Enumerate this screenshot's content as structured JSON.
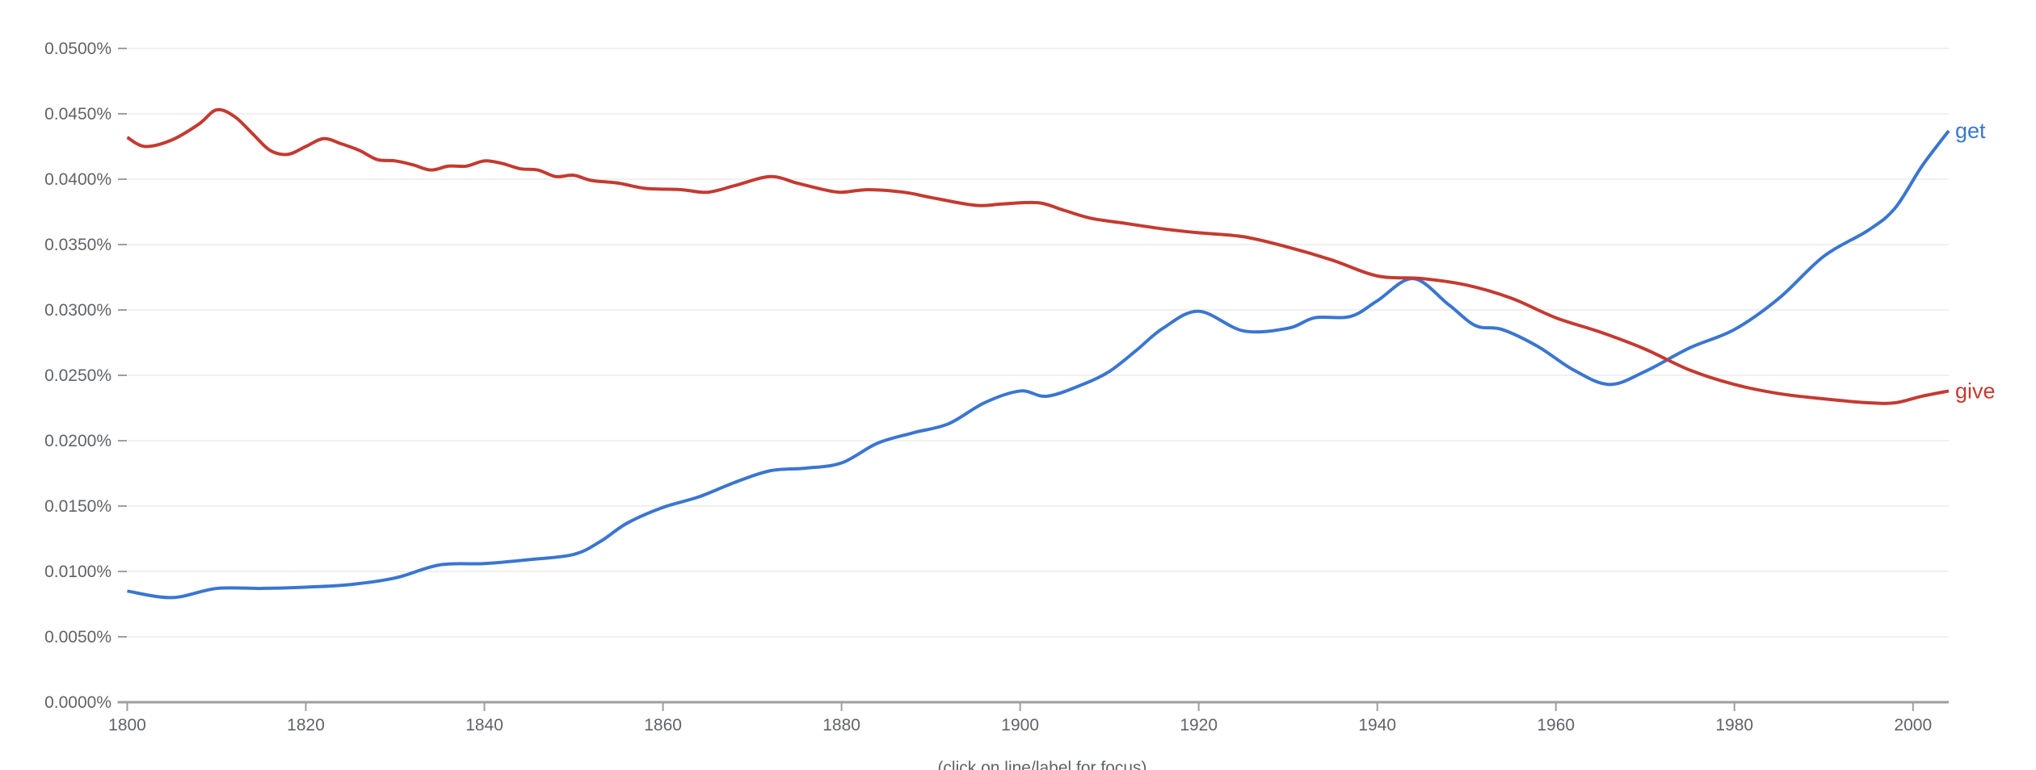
{
  "chart_data": {
    "type": "line",
    "title": "",
    "xlabel": "",
    "ylabel": "",
    "xlim": [
      1800,
      2004
    ],
    "ylim": [
      0,
      0.05
    ],
    "grid": true,
    "legend": "inline-right",
    "x_ticks": [
      "1800",
      "1820",
      "1840",
      "1860",
      "1880",
      "1900",
      "1920",
      "1940",
      "1960",
      "1980",
      "2000"
    ],
    "y_ticks": [
      "0.0000%",
      "0.0050%",
      "0.0100%",
      "0.0150%",
      "0.0200%",
      "0.0250%",
      "0.0300%",
      "0.0350%",
      "0.0400%",
      "0.0450%",
      "0.0500%"
    ],
    "footer": "(click on line/label for focus)",
    "series": [
      {
        "name": "get",
        "color": "#3a76d0",
        "points": [
          [
            1800,
            0.0085
          ],
          [
            1805,
            0.008
          ],
          [
            1810,
            0.0087
          ],
          [
            1815,
            0.0087
          ],
          [
            1820,
            0.0088
          ],
          [
            1825,
            0.009
          ],
          [
            1830,
            0.0095
          ],
          [
            1835,
            0.0105
          ],
          [
            1840,
            0.0106
          ],
          [
            1845,
            0.0109
          ],
          [
            1850,
            0.0113
          ],
          [
            1853,
            0.0123
          ],
          [
            1856,
            0.0137
          ],
          [
            1860,
            0.0149
          ],
          [
            1864,
            0.0157
          ],
          [
            1868,
            0.0168
          ],
          [
            1872,
            0.0177
          ],
          [
            1876,
            0.0179
          ],
          [
            1880,
            0.0183
          ],
          [
            1884,
            0.0198
          ],
          [
            1888,
            0.0206
          ],
          [
            1892,
            0.0213
          ],
          [
            1896,
            0.0229
          ],
          [
            1900,
            0.0238
          ],
          [
            1903,
            0.0234
          ],
          [
            1907,
            0.0243
          ],
          [
            1910,
            0.0253
          ],
          [
            1913,
            0.0269
          ],
          [
            1916,
            0.0286
          ],
          [
            1920,
            0.0299
          ],
          [
            1925,
            0.0284
          ],
          [
            1930,
            0.0286
          ],
          [
            1933,
            0.0294
          ],
          [
            1937,
            0.0295
          ],
          [
            1940,
            0.0307
          ],
          [
            1944,
            0.0324
          ],
          [
            1948,
            0.0304
          ],
          [
            1951,
            0.0288
          ],
          [
            1954,
            0.0285
          ],
          [
            1958,
            0.0272
          ],
          [
            1962,
            0.0254
          ],
          [
            1966,
            0.0243
          ],
          [
            1970,
            0.0253
          ],
          [
            1975,
            0.0271
          ],
          [
            1980,
            0.0285
          ],
          [
            1985,
            0.0309
          ],
          [
            1990,
            0.0341
          ],
          [
            1995,
            0.0361
          ],
          [
            1998,
            0.0378
          ],
          [
            2001,
            0.041
          ],
          [
            2004,
            0.0437
          ]
        ]
      },
      {
        "name": "give",
        "color": "#c43a31",
        "points": [
          [
            1800,
            0.0432
          ],
          [
            1802,
            0.0425
          ],
          [
            1805,
            0.043
          ],
          [
            1808,
            0.0442
          ],
          [
            1810,
            0.0453
          ],
          [
            1812,
            0.0448
          ],
          [
            1814,
            0.0435
          ],
          [
            1816,
            0.0422
          ],
          [
            1818,
            0.0419
          ],
          [
            1820,
            0.0425
          ],
          [
            1822,
            0.0431
          ],
          [
            1824,
            0.0427
          ],
          [
            1826,
            0.0422
          ],
          [
            1828,
            0.0415
          ],
          [
            1830,
            0.0414
          ],
          [
            1832,
            0.0411
          ],
          [
            1834,
            0.0407
          ],
          [
            1836,
            0.041
          ],
          [
            1838,
            0.041
          ],
          [
            1840,
            0.0414
          ],
          [
            1842,
            0.0412
          ],
          [
            1844,
            0.0408
          ],
          [
            1846,
            0.0407
          ],
          [
            1848,
            0.0402
          ],
          [
            1850,
            0.0403
          ],
          [
            1852,
            0.0399
          ],
          [
            1855,
            0.0397
          ],
          [
            1858,
            0.0393
          ],
          [
            1862,
            0.0392
          ],
          [
            1865,
            0.039
          ],
          [
            1868,
            0.0395
          ],
          [
            1872,
            0.0402
          ],
          [
            1875,
            0.0397
          ],
          [
            1878,
            0.0392
          ],
          [
            1880,
            0.039
          ],
          [
            1883,
            0.0392
          ],
          [
            1887,
            0.039
          ],
          [
            1890,
            0.0386
          ],
          [
            1895,
            0.038
          ],
          [
            1898,
            0.0381
          ],
          [
            1902,
            0.0382
          ],
          [
            1905,
            0.0376
          ],
          [
            1908,
            0.037
          ],
          [
            1912,
            0.0366
          ],
          [
            1916,
            0.0362
          ],
          [
            1920,
            0.0359
          ],
          [
            1925,
            0.0356
          ],
          [
            1930,
            0.0348
          ],
          [
            1935,
            0.0338
          ],
          [
            1940,
            0.0326
          ],
          [
            1945,
            0.0324
          ],
          [
            1950,
            0.0319
          ],
          [
            1955,
            0.0309
          ],
          [
            1960,
            0.0294
          ],
          [
            1965,
            0.0283
          ],
          [
            1970,
            0.027
          ],
          [
            1975,
            0.0254
          ],
          [
            1980,
            0.0243
          ],
          [
            1985,
            0.0236
          ],
          [
            1990,
            0.0232
          ],
          [
            1995,
            0.0229
          ],
          [
            1998,
            0.0229
          ],
          [
            2001,
            0.0234
          ],
          [
            2004,
            0.0238
          ]
        ]
      }
    ]
  }
}
